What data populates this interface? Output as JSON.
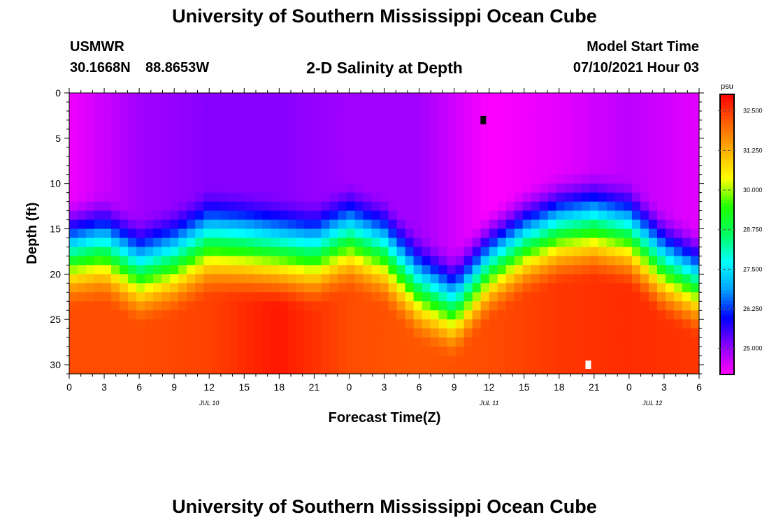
{
  "header": {
    "title_top": "University of Southern Mississippi Ocean Cube",
    "title_bottom": "University of Southern Mississippi Ocean Cube",
    "station": "USMWR",
    "lat": "30.1668N",
    "lon": "88.8653W",
    "plot_title": "2-D Salinity at Depth",
    "model_start_label": "Model Start Time",
    "model_start_value": "07/10/2021 Hour 03"
  },
  "chart_data": {
    "type": "heatmap",
    "title": "2-D Salinity at Depth",
    "xlabel": "Forecast Time(Z)",
    "ylabel": "Depth (ft)",
    "x_ticks": [
      "0",
      "3",
      "6",
      "9",
      "12",
      "15",
      "18",
      "21",
      "0",
      "3",
      "6",
      "9",
      "12",
      "15",
      "18",
      "21",
      "0",
      "3",
      "6"
    ],
    "x_range_hours": [
      0,
      54
    ],
    "date_labels": [
      {
        "text": "JUL 10",
        "hour": 12
      },
      {
        "text": "JUL 11",
        "hour": 36
      },
      {
        "text": "JUL 12",
        "hour": 50
      }
    ],
    "y_ticks": [
      0,
      5,
      10,
      15,
      20,
      25,
      30
    ],
    "ylim": [
      0,
      31
    ],
    "y_inverted": true,
    "colorbar": {
      "unit": "psu",
      "range": [
        24.2,
        33.0
      ],
      "ticks": [
        "32.500",
        "31.250",
        "30.000",
        "28.750",
        "27.500",
        "26.250",
        "25.000"
      ],
      "colors": [
        "#ff00ff",
        "#8a00ff",
        "#0000ff",
        "#00a0ff",
        "#00ffff",
        "#00ff60",
        "#20ff00",
        "#ffff00",
        "#ffb000",
        "#ff6000",
        "#ff0000"
      ]
    },
    "value_model": "salinity(t, depth) = clamp(surface + (bottom - surface) * smoothstep((depth - halocline(t)) / 13), 24.2, 33.0)",
    "halocline_depth_ft": {
      "hours": [
        0,
        3,
        6,
        9,
        12,
        15,
        18,
        21,
        24,
        27,
        30,
        33,
        36,
        39,
        42,
        45,
        48,
        51,
        54
      ],
      "values": [
        11.2,
        10.6,
        13.2,
        12.0,
        10.0,
        10.4,
        11.0,
        11.4,
        9.4,
        11.0,
        15.0,
        17.0,
        12.5,
        10.0,
        8.5,
        8.0,
        9.0,
        12.5,
        14.5
      ]
    },
    "surface_salinity": {
      "hours": [
        0,
        6,
        12,
        18,
        24,
        30,
        36,
        42,
        48,
        54
      ],
      "values": [
        24.3,
        24.9,
        25.1,
        25.1,
        24.9,
        24.9,
        24.2,
        24.4,
        24.7,
        24.4
      ]
    },
    "bottom_salinity": {
      "hours": [
        0,
        6,
        12,
        18,
        24,
        30,
        36,
        42,
        48,
        54
      ],
      "values": [
        32.3,
        32.3,
        32.4,
        32.8,
        32.3,
        32.2,
        32.3,
        32.5,
        32.6,
        32.5
      ]
    },
    "markers": [
      {
        "hour": 35.5,
        "depth": 3,
        "color": "#000000"
      },
      {
        "hour": 44.5,
        "depth": 30,
        "color": "#ffffff"
      }
    ]
  }
}
